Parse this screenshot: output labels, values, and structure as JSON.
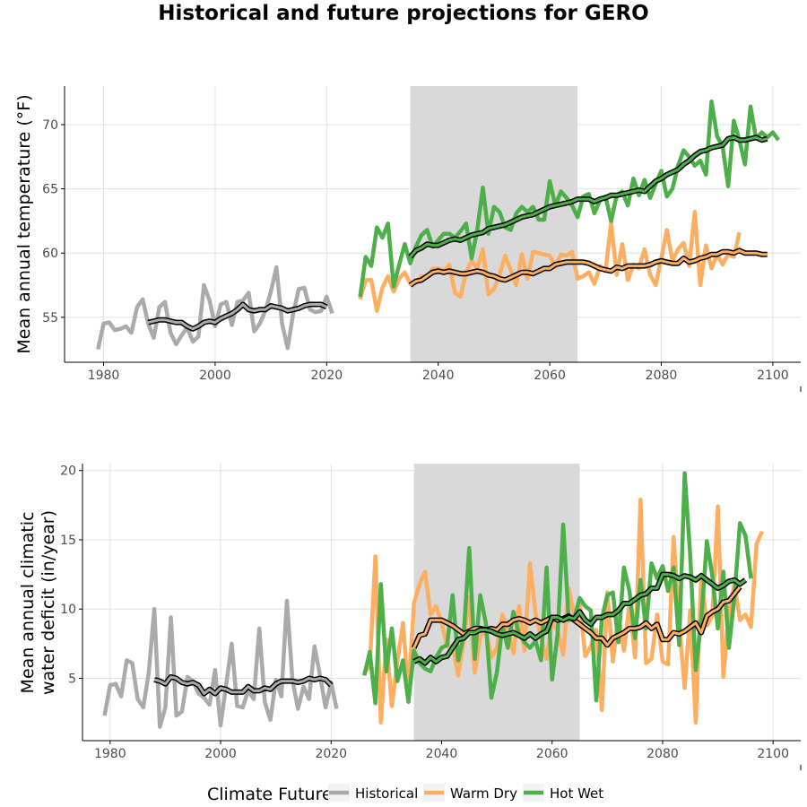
{
  "title": "Historical and future projections for GERO",
  "legend": {
    "title": "Climate Future",
    "items": [
      {
        "label": "Historical",
        "color": "#aaaaaa"
      },
      {
        "label": "Warm Dry",
        "color": "#fdae61"
      },
      {
        "label": "Hot Wet",
        "color": "#4daf4a"
      }
    ]
  },
  "chart_data": [
    {
      "type": "line",
      "ylabel": "Mean annual temperature (°F)",
      "xlabel": "",
      "xlim": [
        1973,
        2105
      ],
      "ylim": [
        51.5,
        73
      ],
      "xticks": [
        1980,
        2000,
        2020,
        2040,
        2060,
        2080,
        2100
      ],
      "yticks": [
        55,
        60,
        65,
        70
      ],
      "shaded_period": [
        2035,
        2065
      ],
      "grid": true,
      "series": [
        {
          "name": "Historical",
          "color": "#aaaaaa",
          "x0": 1979,
          "values": [
            52.5,
            54.5,
            54.6,
            54.0,
            54.1,
            54.3,
            53.8,
            55.8,
            56.4,
            54.5,
            53.4,
            55.8,
            56.2,
            53.8,
            52.9,
            53.6,
            54.2,
            53.1,
            53.5,
            57.5,
            56.3,
            54.3,
            56.0,
            56.2,
            54.4,
            56.2,
            56.3,
            56.9,
            53.9,
            54.5,
            55.5,
            57.0,
            58.9,
            54.5,
            52.6,
            55.3,
            57.2,
            57.3,
            55.6,
            55.4,
            55.5,
            56.6,
            55.3
          ]
        },
        {
          "name": "Warm Dry",
          "color": "#fdae61",
          "x0": 2026,
          "values": [
            56.4,
            57.9,
            57.9,
            55.5,
            57.3,
            58.2,
            57.0,
            58.0,
            58.5,
            57.6,
            57.7,
            58.2,
            58.1,
            58.8,
            58.8,
            58.6,
            59.1,
            56.9,
            56.6,
            58.5,
            59.4,
            58.8,
            60.3,
            56.8,
            57.2,
            58.3,
            59.8,
            58.7,
            57.5,
            59.9,
            58.0,
            60.1,
            60.0,
            59.9,
            59.8,
            58.9,
            59.9,
            59.8,
            60.1,
            58.0,
            58.2,
            58.5,
            57.6,
            59.0,
            58.6,
            62.4,
            58.3,
            60.7,
            57.9,
            59.1,
            58.8,
            60.3,
            58.3,
            57.5,
            59.6,
            61.8,
            59.4,
            60.3,
            60.8,
            59.0,
            63.2,
            57.5,
            60.6,
            58.8,
            59.9,
            59.1,
            59.9,
            59.7,
            61.6
          ]
        },
        {
          "name": "Hot Wet",
          "color": "#4daf4a",
          "x0": 2026,
          "values": [
            56.6,
            59.7,
            59.0,
            62.0,
            61.2,
            62.3,
            57.4,
            59.1,
            60.7,
            59.2,
            60.5,
            61.4,
            61.8,
            60.5,
            61.0,
            61.5,
            61.5,
            61.2,
            61.7,
            62.3,
            59.6,
            61.8,
            65.1,
            61.5,
            63.6,
            63.2,
            62.0,
            61.8,
            63.1,
            63.6,
            63.2,
            63.6,
            62.6,
            62.6,
            65.6,
            63.7,
            64.8,
            64.3,
            63.7,
            62.8,
            64.4,
            64.6,
            63.1,
            64.1,
            64.4,
            62.5,
            64.5,
            64.8,
            63.7,
            65.8,
            64.5,
            65.7,
            64.3,
            65.4,
            66.4,
            64.4,
            65.0,
            66.8,
            68.0,
            67.5,
            66.8,
            67.2,
            66.1,
            71.8,
            69.1,
            68.3,
            65.2,
            70.3,
            68.8,
            66.9,
            71.4,
            68.9,
            69.4,
            69.0,
            69.4,
            68.8
          ]
        },
        {
          "name": "Historical running mean",
          "color": "#000000",
          "x0": 1988,
          "values": [
            54.6,
            54.7,
            54.8,
            54.8,
            54.7,
            54.6,
            54.6,
            54.3,
            54.1,
            54.3,
            54.6,
            54.7,
            54.6,
            54.9,
            55.1,
            55.3,
            55.6,
            56.0,
            55.6,
            55.5,
            55.6,
            55.6,
            55.9,
            55.8,
            55.7,
            55.5,
            55.6,
            55.7,
            55.9,
            56.0,
            56.0,
            56.0,
            55.8
          ]
        },
        {
          "name": "Warm Dry running mean",
          "color": "#000000",
          "x0": 2035,
          "values": [
            57.5,
            57.8,
            57.9,
            58.2,
            58.5,
            58.6,
            58.5,
            58.6,
            58.5,
            58.4,
            58.4,
            58.5,
            58.6,
            58.5,
            58.3,
            58.2,
            58.0,
            57.9,
            58.1,
            58.3,
            58.5,
            58.5,
            58.4,
            58.6,
            58.8,
            58.8,
            59.1,
            59.2,
            59.3,
            59.3,
            59.3,
            59.3,
            59.2,
            59.0,
            58.8,
            58.7,
            58.6,
            58.9,
            58.8,
            59.0,
            59.0,
            59.0,
            59.0,
            59.1,
            59.3,
            59.4,
            59.3,
            59.2,
            59.2,
            59.6,
            59.3,
            59.4,
            59.6,
            59.7,
            59.9,
            59.9,
            60.1,
            60.1,
            60.0,
            60.2,
            60.0,
            60.0,
            60.0,
            59.9,
            59.9
          ]
        },
        {
          "name": "Hot Wet running mean",
          "color": "#000000",
          "x0": 2035,
          "values": [
            59.7,
            60.2,
            60.4,
            60.7,
            60.6,
            60.6,
            60.8,
            61.0,
            61.1,
            61.0,
            61.2,
            61.4,
            61.5,
            61.6,
            61.9,
            62.0,
            62.1,
            62.2,
            62.4,
            62.6,
            62.8,
            62.9,
            63.0,
            63.2,
            63.4,
            63.6,
            63.7,
            63.8,
            63.9,
            64.0,
            64.2,
            64.2,
            64.2,
            64.0,
            64.2,
            64.3,
            64.5,
            64.5,
            64.6,
            64.7,
            64.8,
            64.9,
            64.8,
            65.2,
            65.6,
            65.8,
            66.1,
            66.3,
            66.5,
            66.9,
            67.2,
            67.6,
            67.9,
            68.0,
            68.2,
            68.3,
            68.4,
            68.9,
            69.0,
            68.8,
            68.8,
            68.9,
            69.0,
            68.8,
            68.9
          ]
        }
      ]
    },
    {
      "type": "line",
      "ylabel": "Mean annual climatic water deficit (in/year)",
      "xlabel": "",
      "xlim": [
        1975,
        2105
      ],
      "ylim": [
        0.5,
        20.5
      ],
      "xticks": [
        1980,
        2000,
        2020,
        2040,
        2060,
        2080,
        2100
      ],
      "yticks": [
        5,
        10,
        15,
        20
      ],
      "shaded_period": [
        2035,
        2065
      ],
      "grid": true,
      "series": [
        {
          "name": "Historical",
          "color": "#aaaaaa",
          "x0": 1979,
          "values": [
            2.3,
            4.5,
            4.6,
            3.7,
            6.3,
            6.1,
            3.5,
            2.9,
            5.4,
            10.0,
            1.5,
            2.9,
            9.4,
            2.3,
            2.6,
            5.1,
            4.8,
            3.9,
            3.6,
            3.1,
            5.6,
            1.6,
            4.5,
            7.5,
            3.0,
            2.9,
            4.1,
            3.5,
            8.6,
            3.3,
            2.0,
            4.9,
            3.7,
            10.6,
            4.9,
            2.8,
            4.4,
            3.5,
            7.3,
            5.2,
            2.9,
            4.7,
            2.8
          ]
        },
        {
          "name": "Warm Dry",
          "color": "#fdae61",
          "x0": 2026,
          "values": [
            5.4,
            5.9,
            13.8,
            1.8,
            7.8,
            3.0,
            6.2,
            9.0,
            4.0,
            10.4,
            11.8,
            12.7,
            9.6,
            10.2,
            9.0,
            7.3,
            7.4,
            5.2,
            7.7,
            10.8,
            5.4,
            8.0,
            8.5,
            6.5,
            7.2,
            9.6,
            8.5,
            6.8,
            10.2,
            7.0,
            13.3,
            9.7,
            7.9,
            6.4,
            9.1,
            8.4,
            6.7,
            11.5,
            9.5,
            10.5,
            6.6,
            7.3,
            8.5,
            2.7,
            11.2,
            6.2,
            9.6,
            7.0,
            10.4,
            6.5,
            17.9,
            6.1,
            6.4,
            9.6,
            6.2,
            6.0,
            15.2,
            8.9,
            4.3,
            9.9,
            1.8,
            12.5,
            8.8,
            9.5,
            17.4,
            5.1,
            9.8,
            11.8,
            9.2,
            9.6,
            8.7,
            14.7,
            15.6
          ]
        },
        {
          "name": "Hot Wet",
          "color": "#4daf4a",
          "x0": 2026,
          "values": [
            5.2,
            6.9,
            3.2,
            11.8,
            5.5,
            8.6,
            4.8,
            6.3,
            3.3,
            7.0,
            6.1,
            5.7,
            5.5,
            6.5,
            7.2,
            7.4,
            11.0,
            6.3,
            8.1,
            14.4,
            6.4,
            11.0,
            9.0,
            3.6,
            5.4,
            8.8,
            7.2,
            9.8,
            8.2,
            7.6,
            7.2,
            7.7,
            6.3,
            13.0,
            4.9,
            8.2,
            16.1,
            9.2,
            9.3,
            10.8,
            10.2,
            9.9,
            3.4,
            9.3,
            11.0,
            11.2,
            7.6,
            13.0,
            11.3,
            7.9,
            12.1,
            8.6,
            13.3,
            12.2,
            13.1,
            11.3,
            13.0,
            7.4,
            19.8,
            13.8,
            5.6,
            9.2,
            14.9,
            12.4,
            8.6,
            12.7,
            7.2,
            10.9,
            16.2,
            15.3,
            12.2
          ]
        },
        {
          "name": "Historical running mean",
          "color": "#000000",
          "x0": 1988,
          "values": [
            4.9,
            4.8,
            4.6,
            5.1,
            5.0,
            4.7,
            4.6,
            4.7,
            4.5,
            3.9,
            4.2,
            3.9,
            4.3,
            4.2,
            4.0,
            4.0,
            4.0,
            4.4,
            4.1,
            4.1,
            4.3,
            4.2,
            4.6,
            4.8,
            4.8,
            4.8,
            4.7,
            4.8,
            5.0,
            4.9,
            5.0,
            4.9,
            4.5
          ]
        },
        {
          "name": "Warm Dry running mean",
          "color": "#000000",
          "x0": 2035,
          "values": [
            7.2,
            8.1,
            8.2,
            9.2,
            9.2,
            9.2,
            9.0,
            8.8,
            8.5,
            8.2,
            8.4,
            8.6,
            8.6,
            8.5,
            8.6,
            8.5,
            8.9,
            8.9,
            9.2,
            9.3,
            9.2,
            9.0,
            9.2,
            9.0,
            9.2,
            9.4,
            9.2,
            9.3,
            9.5,
            9.2,
            8.9,
            8.6,
            8.3,
            7.9,
            7.9,
            7.4,
            7.9,
            8.1,
            8.3,
            8.6,
            8.6,
            8.7,
            9.0,
            8.6,
            8.9,
            7.8,
            7.8,
            8.3,
            8.2,
            8.4,
            8.7,
            9.0,
            8.3,
            9.5,
            9.8,
            10.0,
            10.5,
            10.6,
            11.1,
            11.6
          ]
        },
        {
          "name": "Hot Wet running mean",
          "color": "#000000",
          "x0": 2035,
          "values": [
            6.2,
            6.4,
            6.1,
            6.5,
            6.2,
            6.5,
            6.6,
            7.2,
            7.8,
            7.9,
            8.3,
            8.3,
            8.5,
            8.5,
            8.4,
            8.2,
            8.1,
            8.2,
            8.3,
            8.1,
            7.9,
            8.2,
            7.9,
            8.2,
            8.4,
            9.4,
            9.4,
            9.2,
            9.4,
            9.3,
            9.8,
            9.2,
            8.9,
            9.4,
            9.4,
            9.6,
            9.6,
            9.9,
            10.4,
            10.4,
            10.7,
            11.0,
            11.1,
            11.5,
            11.5,
            12.5,
            12.5,
            12.4,
            12.2,
            12.4,
            12.3,
            12.1,
            12.4,
            12.1,
            11.8,
            11.5,
            11.7,
            12.0,
            12.1,
            11.8,
            12.1
          ]
        }
      ]
    }
  ]
}
